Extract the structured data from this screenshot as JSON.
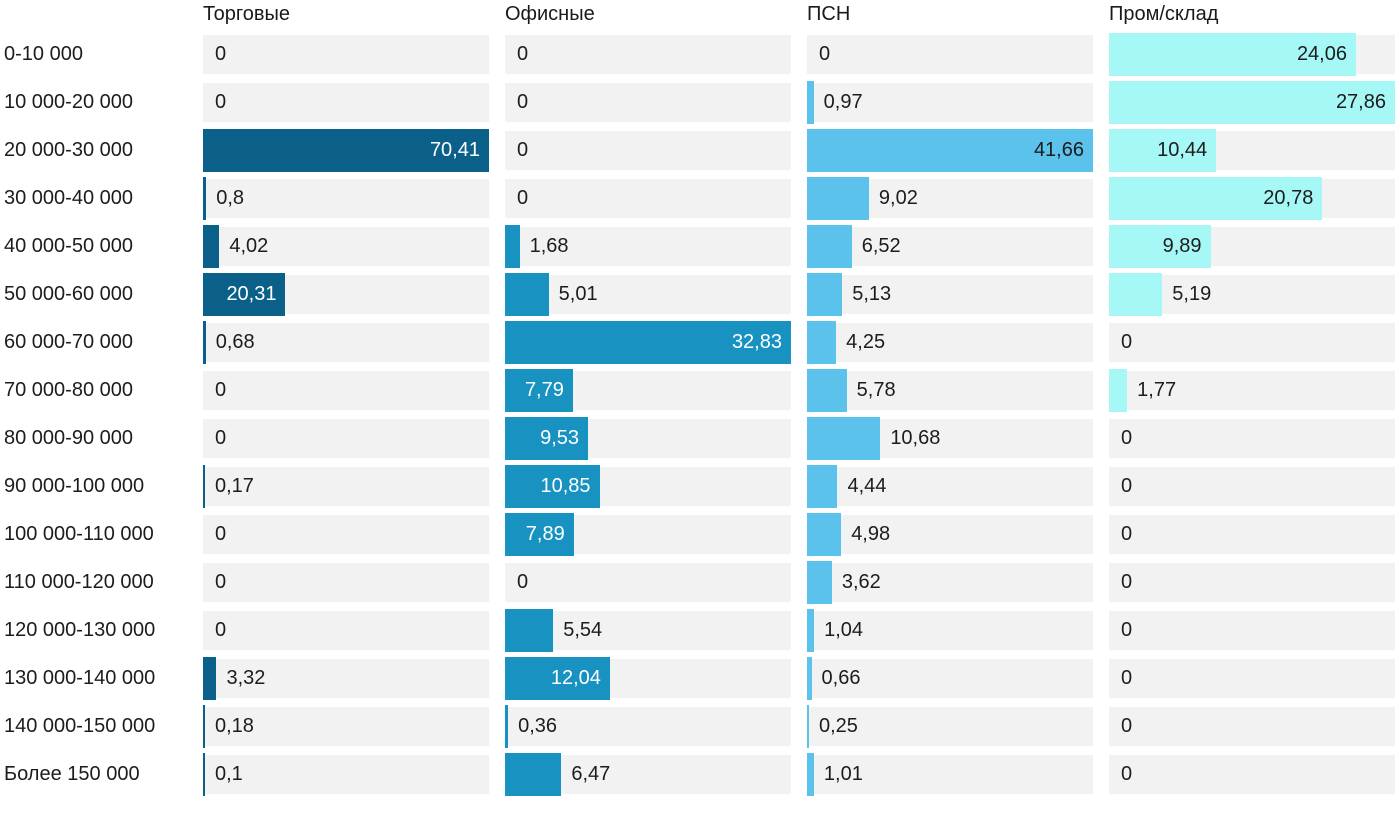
{
  "chart_data": {
    "type": "bar",
    "orientation": "horizontal",
    "layout": "small-multiples-4-columns",
    "scaling": "each-column-scaled-to-its-own-max",
    "grid": "off",
    "value_format": "comma-decimal",
    "track_color": "#f2f2f2",
    "text_color": "#1c1c1c",
    "categories": [
      "0-10 000",
      "10 000-20 000",
      "20 000-30 000",
      "30 000-40 000",
      "40 000-50 000",
      "50 000-60 000",
      "60 000-70 000",
      "70 000-80 000",
      "80 000-90 000",
      "90 000-100 000",
      "100 000-110 000",
      "110 000-120 000",
      "120 000-130 000",
      "130 000-140 000",
      "140 000-150 000",
      "Более 150 000"
    ],
    "series": [
      {
        "name": "Торговые",
        "color": "#0b608a",
        "label_inside_color": "#ffffff",
        "values": [
          0,
          0,
          70.41,
          0.8,
          4.02,
          20.31,
          0.68,
          0,
          0,
          0.17,
          0,
          0,
          0,
          3.32,
          0.18,
          0.1
        ]
      },
      {
        "name": "Офисные",
        "color": "#1792c1",
        "label_inside_color": "#ffffff",
        "values": [
          0,
          0,
          0,
          0,
          1.68,
          5.01,
          32.83,
          7.79,
          9.53,
          10.85,
          7.89,
          0,
          5.54,
          12.04,
          0.36,
          6.47
        ]
      },
      {
        "name": "ПСН",
        "color": "#5bc2ec",
        "label_inside_color": "#1c1c1c",
        "values": [
          0,
          0.97,
          41.66,
          9.02,
          6.52,
          5.13,
          4.25,
          5.78,
          10.68,
          4.44,
          4.98,
          3.62,
          1.04,
          0.66,
          0.25,
          1.01
        ]
      },
      {
        "name": "Пром/склад",
        "color": "#a5f8f6",
        "label_inside_color": "#1c1c1c",
        "values": [
          24.06,
          27.86,
          10.44,
          20.78,
          9.89,
          5.19,
          0,
          1.77,
          0,
          0,
          0,
          0,
          0,
          0,
          0,
          0
        ]
      }
    ]
  }
}
